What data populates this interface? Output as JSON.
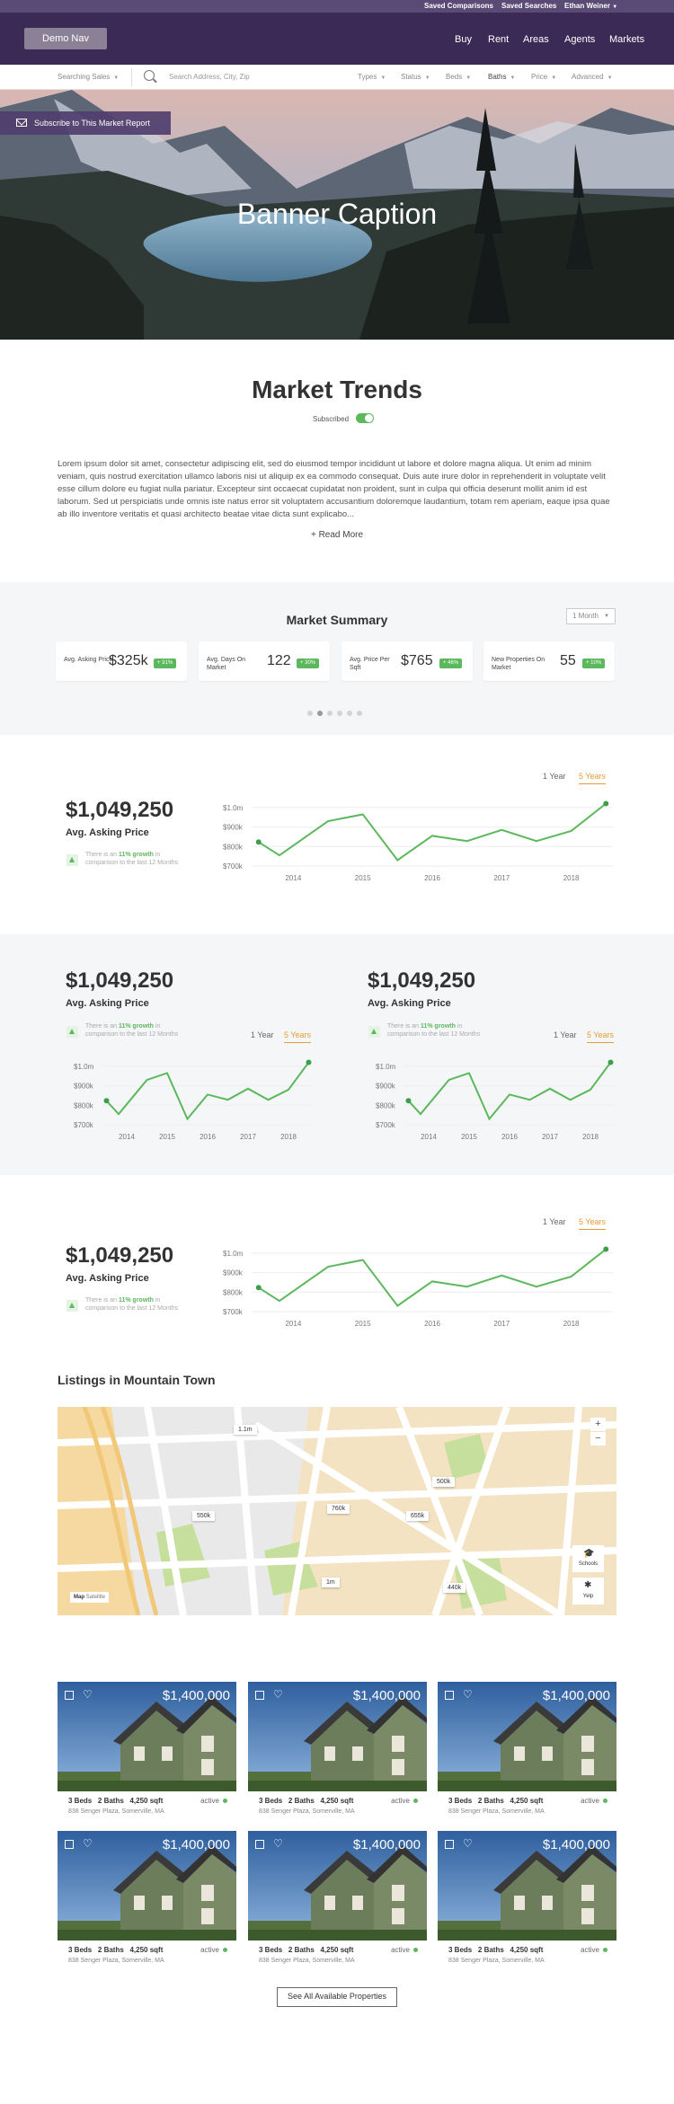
{
  "util_bar": {
    "saved_comparisons": "Saved Comparisons",
    "saved_searches": "Saved Searches",
    "user": "Ethan Weiner"
  },
  "nav": {
    "demo_label": "Demo Nav",
    "links": [
      "Buy",
      "Rent",
      "Areas",
      "Agents",
      "Markets"
    ]
  },
  "search_bar": {
    "mode": "Searching Sales",
    "placeholder": "Search Address, City, Zip",
    "filters": [
      "Types",
      "Status",
      "Beds",
      "Baths",
      "Price",
      "Advanced"
    ]
  },
  "hero": {
    "subscribe_label": "Subscribe to This Market Report",
    "caption": "Banner Caption"
  },
  "market_trends": {
    "title": "Market Trends",
    "subscribed_label": "Subscribed",
    "description": "Lorem ipsum dolor sit amet, consectetur adipiscing elit, sed do eiusmod tempor incididunt ut labore et dolore magna aliqua. Ut enim ad minim veniam, quis nostrud exercitation ullamco laboris nisi ut aliquip ex ea commodo consequat. Duis aute irure dolor in reprehenderit in voluptate velit esse cillum dolore eu fugiat nulla pariatur. Excepteur sint occaecat cupidatat non proident, sunt in culpa qui officia deserunt mollit anim id est laborum. Sed ut perspiciatis unde omnis iste natus error sit voluptatem accusantium doloremque laudantium, totam rem aperiam, eaque ipsa quae ab illo inventore veritatis et quasi architecto beatae vitae dicta sunt explicabo...",
    "read_more": "+  Read More"
  },
  "summary": {
    "title": "Market Summary",
    "period": "1 Month",
    "cards": [
      {
        "label": "Avg. Asking Price",
        "value": "$325k",
        "badge": "+ 31%"
      },
      {
        "label": "Avg. Days On Market",
        "value": "122",
        "badge": "+ 30%"
      },
      {
        "label": "Avg. Price Per Sqft",
        "value": "$765",
        "badge": "+ 46%"
      },
      {
        "label": "New Properties On Market",
        "value": "55",
        "badge": "+ 10%"
      }
    ]
  },
  "price_panel": {
    "price": "$1,049,250",
    "label": "Avg. Asking Price",
    "growth_pre": "There is an ",
    "growth_value": "11% growth",
    "growth_post": " in comparison to the last 12 Months",
    "range_1y": "1 Year",
    "range_5y": "5 Years"
  },
  "chart_data": {
    "type": "line",
    "title": "Avg. Asking Price",
    "x_ticks": [
      "2014",
      "2015",
      "2016",
      "2017",
      "2018"
    ],
    "y_ticks": [
      "$700k",
      "$800k",
      "$900k",
      "$1.0m"
    ],
    "ylim": [
      700,
      1050
    ],
    "xlim": [
      2013.4,
      2018.6
    ],
    "points": [
      {
        "x": 2013.5,
        "y": 823
      },
      {
        "x": 2013.8,
        "y": 755
      },
      {
        "x": 2014.5,
        "y": 930
      },
      {
        "x": 2015.0,
        "y": 965
      },
      {
        "x": 2015.5,
        "y": 730
      },
      {
        "x": 2016.0,
        "y": 855
      },
      {
        "x": 2016.5,
        "y": 828
      },
      {
        "x": 2017.0,
        "y": 885
      },
      {
        "x": 2017.5,
        "y": 828
      },
      {
        "x": 2018.0,
        "y": 880
      },
      {
        "x": 2018.5,
        "y": 1020
      }
    ],
    "grid": true,
    "legend": "none"
  },
  "listings": {
    "title": "Listings in Mountain Town",
    "map_pins": [
      "1.1m",
      "500k",
      "760k",
      "655k",
      "550k",
      "1m",
      "440k"
    ],
    "map_zoom_in": "+",
    "map_zoom_out": "−",
    "map_schools": "Schools",
    "map_yelp": "Yelp",
    "map_type": "Map",
    "map_satellite": "Satellite",
    "properties": [
      {
        "price": "$1,400,000",
        "specs": "3 Beds   2 Baths   4,250 sqft",
        "status": "active",
        "address": "838 Senger Plaza, Somerville, MA"
      },
      {
        "price": "$1,400,000",
        "specs": "3 Beds   2 Baths   4,250 sqft",
        "status": "active",
        "address": "838 Senger Plaza, Somerville, MA"
      },
      {
        "price": "$1,400,000",
        "specs": "3 Beds   2 Baths   4,250 sqft",
        "status": "active",
        "address": "838 Senger Plaza, Somerville, MA"
      },
      {
        "price": "$1,400,000",
        "specs": "3 Beds   2 Baths   4,250 sqft",
        "status": "active",
        "address": "838 Senger Plaza, Somerville, MA"
      },
      {
        "price": "$1,400,000",
        "specs": "3 Beds   2 Baths   4,250 sqft",
        "status": "active",
        "address": "838 Senger Plaza, Somerville, MA"
      },
      {
        "price": "$1,400,000",
        "specs": "3 Beds   2 Baths   4,250 sqft",
        "status": "active",
        "address": "838 Senger Plaza, Somerville, MA"
      }
    ],
    "see_all": "See All Available Properties"
  },
  "colors": {
    "nav": "#3b2a55",
    "accent_green": "#5cb85c",
    "accent_orange": "#e59b3a"
  }
}
